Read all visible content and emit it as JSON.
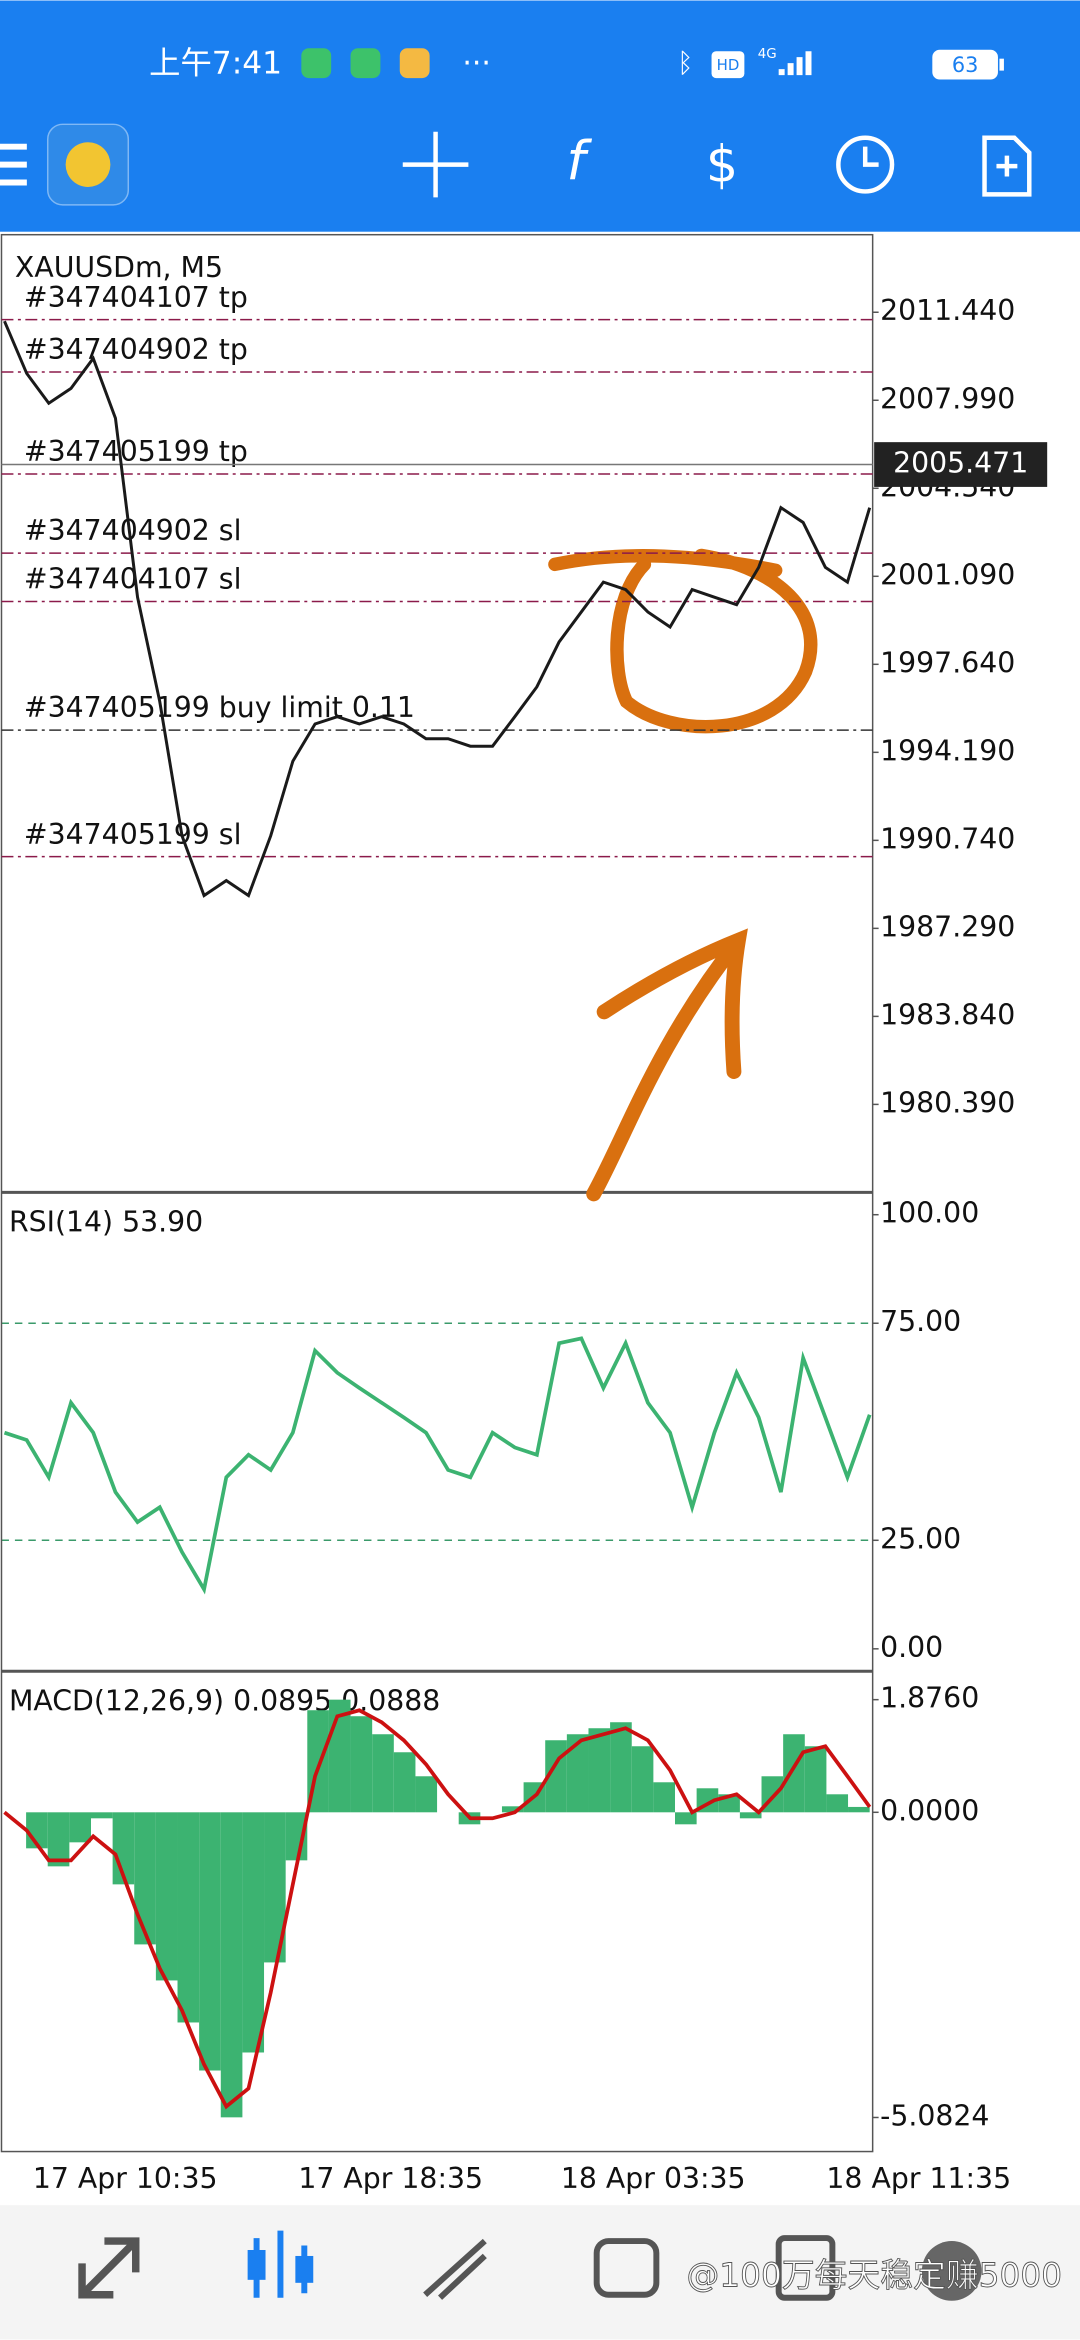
{
  "status_bar": {
    "time": "上午7:41",
    "hd": "HD",
    "network": "4G",
    "battery": "63"
  },
  "toolbar": {
    "function_icon": "f"
  },
  "main_chart": {
    "symbol": "XAUUSDm, M5",
    "ylim": [
      1977.0,
      2014.48
    ],
    "yticks": [
      {
        "value": 2011.44,
        "label": "2011.440"
      },
      {
        "value": 2007.99,
        "label": "2007.990"
      },
      {
        "value": 2004.54,
        "label": "2004.540"
      },
      {
        "value": 2001.09,
        "label": "2001.090"
      },
      {
        "value": 1997.64,
        "label": "1997.640"
      },
      {
        "value": 1994.19,
        "label": "1994.190"
      },
      {
        "value": 1990.74,
        "label": "1990.740"
      },
      {
        "value": 1987.29,
        "label": "1987.290"
      },
      {
        "value": 1983.84,
        "label": "1983.840"
      },
      {
        "value": 1980.39,
        "label": "1980.390"
      }
    ],
    "current_price": 2005.471,
    "color": "#1a1a1a",
    "close": [
      2011.09,
      2009.04,
      2007.87,
      2008.46,
      2009.63,
      2007.29,
      2000.27,
      1996.18,
      1990.92,
      1988.58,
      1989.16,
      1988.58,
      1990.92,
      1993.84,
      1995.3,
      1995.59,
      1995.3,
      1995.59,
      1995.3,
      1994.72,
      1994.72,
      1994.43,
      1994.43,
      1995.59,
      1996.76,
      1998.52,
      1999.69,
      2000.86,
      2000.57,
      1999.69,
      1999.1,
      2000.57,
      2000.27,
      1999.98,
      2001.44,
      2003.78,
      2003.2,
      2001.44,
      2000.86,
      2003.78
    ],
    "orders": [
      {
        "label": "#347404107 tp",
        "price": 2011.15,
        "color": "#8b1a4a"
      },
      {
        "label": "#347404902 tp",
        "price": 2009.1,
        "color": "#8b1a4a"
      },
      {
        "label": "#347405199 tp",
        "price": 2005.1,
        "color": "#8b1a4a"
      },
      {
        "label": "#347404902 sl",
        "price": 2002.0,
        "color": "#8b1a4a"
      },
      {
        "label": "#347404107 sl",
        "price": 2000.1,
        "color": "#8b1a4a"
      },
      {
        "label": "#347405199 buy limit 0.11",
        "price": 1995.06,
        "color": "#333333"
      },
      {
        "label": "#347405199 sl",
        "price": 1990.1,
        "color": "#8b1a4a"
      }
    ]
  },
  "rsi": {
    "title": "RSI(14) 53.90",
    "ylim": [
      -4.47,
      104.8
    ],
    "color": "#3cb371",
    "yticks": [
      {
        "value": 100,
        "label": "100.00"
      },
      {
        "value": 75,
        "label": "75.00"
      },
      {
        "value": 25,
        "label": "25.00"
      },
      {
        "value": 0,
        "label": "0.00"
      }
    ],
    "values": [
      49.8,
      48.1,
      39.5,
      56.7,
      49.8,
      36.1,
      29.2,
      32.6,
      22.3,
      13.7,
      39.5,
      44.7,
      41.2,
      49.8,
      68.7,
      63.6,
      60.1,
      56.7,
      53.3,
      49.8,
      41.2,
      39.5,
      49.8,
      46.4,
      44.7,
      70.4,
      71.5,
      60.1,
      70.4,
      56.7,
      49.8,
      32.6,
      49.8,
      63.6,
      53.3,
      36.1,
      67.0,
      53.3,
      39.5,
      53.9
    ]
  },
  "macd": {
    "title": "MACD(12,26,9) 0.0895 0.0888",
    "ylim": [
      -5.6,
      2.3
    ],
    "yticks": [
      {
        "value": 1.876,
        "label": "1.8760"
      },
      {
        "value": 0,
        "label": "0.0000"
      },
      {
        "value": -5.0824,
        "label": "-5.0824"
      }
    ],
    "histogram": {
      "color": "#3cb371",
      "values": [
        0,
        -0.6,
        -0.9,
        -0.5,
        -0.1,
        -1.2,
        -2.2,
        -2.8,
        -3.5,
        -4.3,
        -5.08,
        -4.0,
        -2.5,
        -0.8,
        1.7,
        1.876,
        1.6,
        1.3,
        1.0,
        0.6,
        0.0,
        -0.2,
        0.0,
        0.1,
        0.5,
        1.2,
        1.3,
        1.4,
        1.5,
        1.1,
        0.5,
        -0.2,
        0.4,
        0.3,
        -0.1,
        0.6,
        1.3,
        1.1,
        0.3,
        0.0895
      ]
    },
    "signal": {
      "color": "#cc1111",
      "values": [
        0,
        -0.3,
        -0.8,
        -0.8,
        -0.4,
        -0.7,
        -1.7,
        -2.6,
        -3.3,
        -4.2,
        -4.9,
        -4.6,
        -3.0,
        -1.2,
        0.6,
        1.6,
        1.7,
        1.5,
        1.2,
        0.8,
        0.3,
        -0.1,
        -0.1,
        0.0,
        0.3,
        0.9,
        1.2,
        1.3,
        1.4,
        1.2,
        0.7,
        0.0,
        0.2,
        0.3,
        0.0,
        0.4,
        1.0,
        1.1,
        0.6,
        0.0888
      ]
    }
  },
  "time_axis": [
    "17 Apr 10:35",
    "17 Apr 18:35",
    "18 Apr 03:35",
    "18 Apr 11:35"
  ],
  "watermark": "@100万每天稳定赚5000"
}
